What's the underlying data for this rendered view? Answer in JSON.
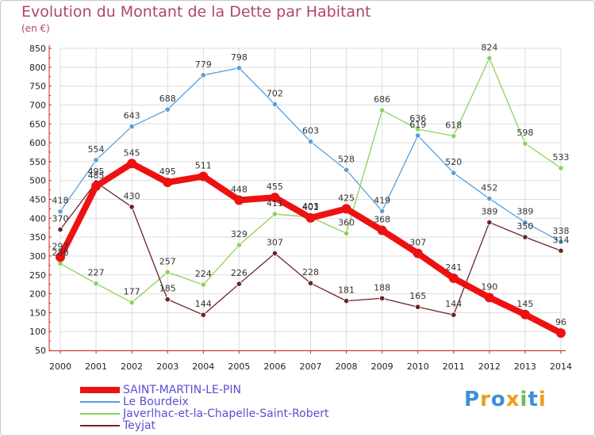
{
  "title": "Evolution du Montant de la Dette par Habitant",
  "unit": "(en €)",
  "logo": {
    "letters": [
      "P",
      "r",
      "o",
      "x",
      "i",
      "t",
      "i"
    ],
    "colors": [
      "#3b8fd8",
      "#e8a020",
      "#3b8fd8",
      "#e8a020",
      "#6cc04a",
      "#3b8fd8",
      "#e8a020"
    ]
  },
  "chart_data": {
    "type": "line",
    "title": "Evolution du Montant de la Dette par Habitant",
    "subtitle": "(en €)",
    "xlabel": "",
    "ylabel": "",
    "x": [
      "2000",
      "2001",
      "2002",
      "2003",
      "2004",
      "2005",
      "2006",
      "2007",
      "2008",
      "2009",
      "2010",
      "2011",
      "2012",
      "2013",
      "2014"
    ],
    "ylim": [
      50,
      850
    ],
    "yticks": [
      "50",
      "100",
      "150",
      "200",
      "250",
      "300",
      "350",
      "400",
      "450",
      "500",
      "550",
      "600",
      "650",
      "700",
      "750",
      "800",
      "850"
    ],
    "grid": true,
    "legend_position": "bottom-left",
    "series": [
      {
        "name": "Le Bourdeix",
        "color": "#5a9ed6",
        "values": [
          418,
          554,
          643,
          688,
          779,
          798,
          702,
          603,
          528,
          419,
          619,
          520,
          452,
          389,
          338
        ],
        "labels": [
          "418",
          "554",
          "643",
          "688",
          "779",
          "798",
          "702",
          "603",
          "528",
          "419",
          "619",
          "520",
          "452",
          "389",
          "338"
        ]
      },
      {
        "name": "Javerlhac-et-la-Chapelle-Saint-Robert",
        "color": "#8ad35a",
        "values": [
          280,
          227,
          177,
          257,
          224,
          329,
          411,
          403,
          360,
          686,
          636,
          618,
          824,
          598,
          533
        ],
        "labels": [
          "280",
          "227",
          "177",
          "257",
          "224",
          "329",
          "411",
          "403",
          "360",
          "686",
          "636",
          "618",
          "824",
          "598",
          "533"
        ]
      },
      {
        "name": "Teyjat",
        "color": "#6b2424",
        "values": [
          370,
          495,
          430,
          185,
          144,
          226,
          307,
          228,
          181,
          188,
          165,
          144,
          389,
          350,
          314
        ],
        "labels": [
          "370",
          "495",
          "430",
          "185",
          "144",
          "226",
          "307",
          "228",
          "181",
          "188",
          "165",
          "144",
          "389",
          "350",
          "314"
        ]
      },
      {
        "name": "SAINT-MARTIN-LE-PIN",
        "color": "#ee1111",
        "values": [
          297,
          485,
          545,
          495,
          511,
          448,
          455,
          401,
          425,
          368,
          307,
          241,
          190,
          145,
          96
        ],
        "labels": [
          "297",
          "485",
          "545",
          "495",
          "511",
          "448",
          "455",
          "401",
          "425",
          "368",
          "307",
          "241",
          "190",
          "145",
          "96"
        ]
      }
    ],
    "legend": [
      {
        "name": "SAINT-MARTIN-LE-PIN",
        "color": "#ee1111",
        "width": 8
      },
      {
        "name": "Le Bourdeix",
        "color": "#5a9ed6",
        "width": 2
      },
      {
        "name": "Javerlhac-et-la-Chapelle-Saint-Robert",
        "color": "#8ad35a",
        "width": 2
      },
      {
        "name": "Teyjat",
        "color": "#6b2424",
        "width": 2
      }
    ]
  }
}
